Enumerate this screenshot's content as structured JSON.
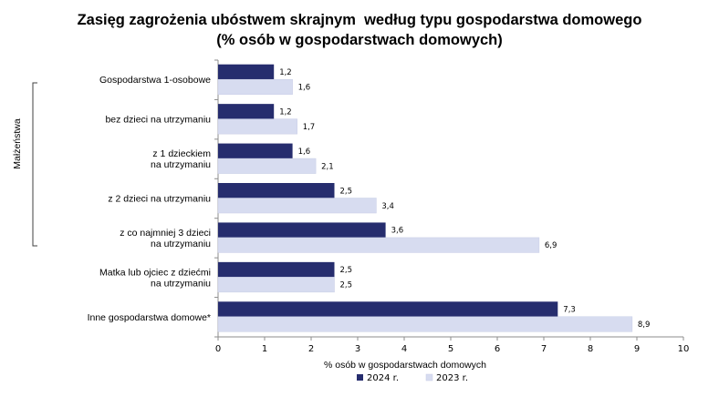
{
  "chart_data": {
    "type": "bar",
    "orientation": "horizontal",
    "title_line1": "Zasięg zagrożenia ubóstwem skrajnym  według typu gospodarstwa domowego",
    "title_line2": "(% osób w gospodarstwach domowych)",
    "xlabel": "% osób w gospodarstwach domowych",
    "xlim": [
      0,
      10
    ],
    "xticks": [
      "0",
      "1",
      "2",
      "3",
      "4",
      "5",
      "6",
      "7",
      "8",
      "9",
      "10"
    ],
    "categories": [
      [
        "Gospodarstwa 1-osobowe"
      ],
      [
        "bez dzieci na utrzymaniu"
      ],
      [
        "z 1 dzieckiem",
        "na utrzymaniu"
      ],
      [
        "z 2 dzieci na utrzymaniu"
      ],
      [
        "z co najmniej 3 dzieci",
        "na utrzymaniu"
      ],
      [
        "Matka lub ojciec z dziećmi",
        "na utrzymaniu"
      ],
      [
        "Inne gospodarstwa domowe*"
      ]
    ],
    "group_label": "Małżeństwa",
    "series": [
      {
        "name": "2024 r.",
        "color": "#262d6e",
        "values": [
          1.2,
          1.2,
          1.6,
          2.5,
          3.6,
          2.5,
          7.3
        ],
        "labels": [
          "1,2",
          "1,2",
          "1,6",
          "2,5",
          "3,6",
          "2,5",
          "7,3"
        ]
      },
      {
        "name": "2023 r.",
        "color": "#d7dcf0",
        "values": [
          1.6,
          1.7,
          2.1,
          3.4,
          6.9,
          2.5,
          8.9
        ],
        "labels": [
          "1,6",
          "1,7",
          "2,1",
          "3,4",
          "6,9",
          "2,5",
          "8,9"
        ]
      }
    ],
    "legend_position": "bottom",
    "grid": false
  }
}
